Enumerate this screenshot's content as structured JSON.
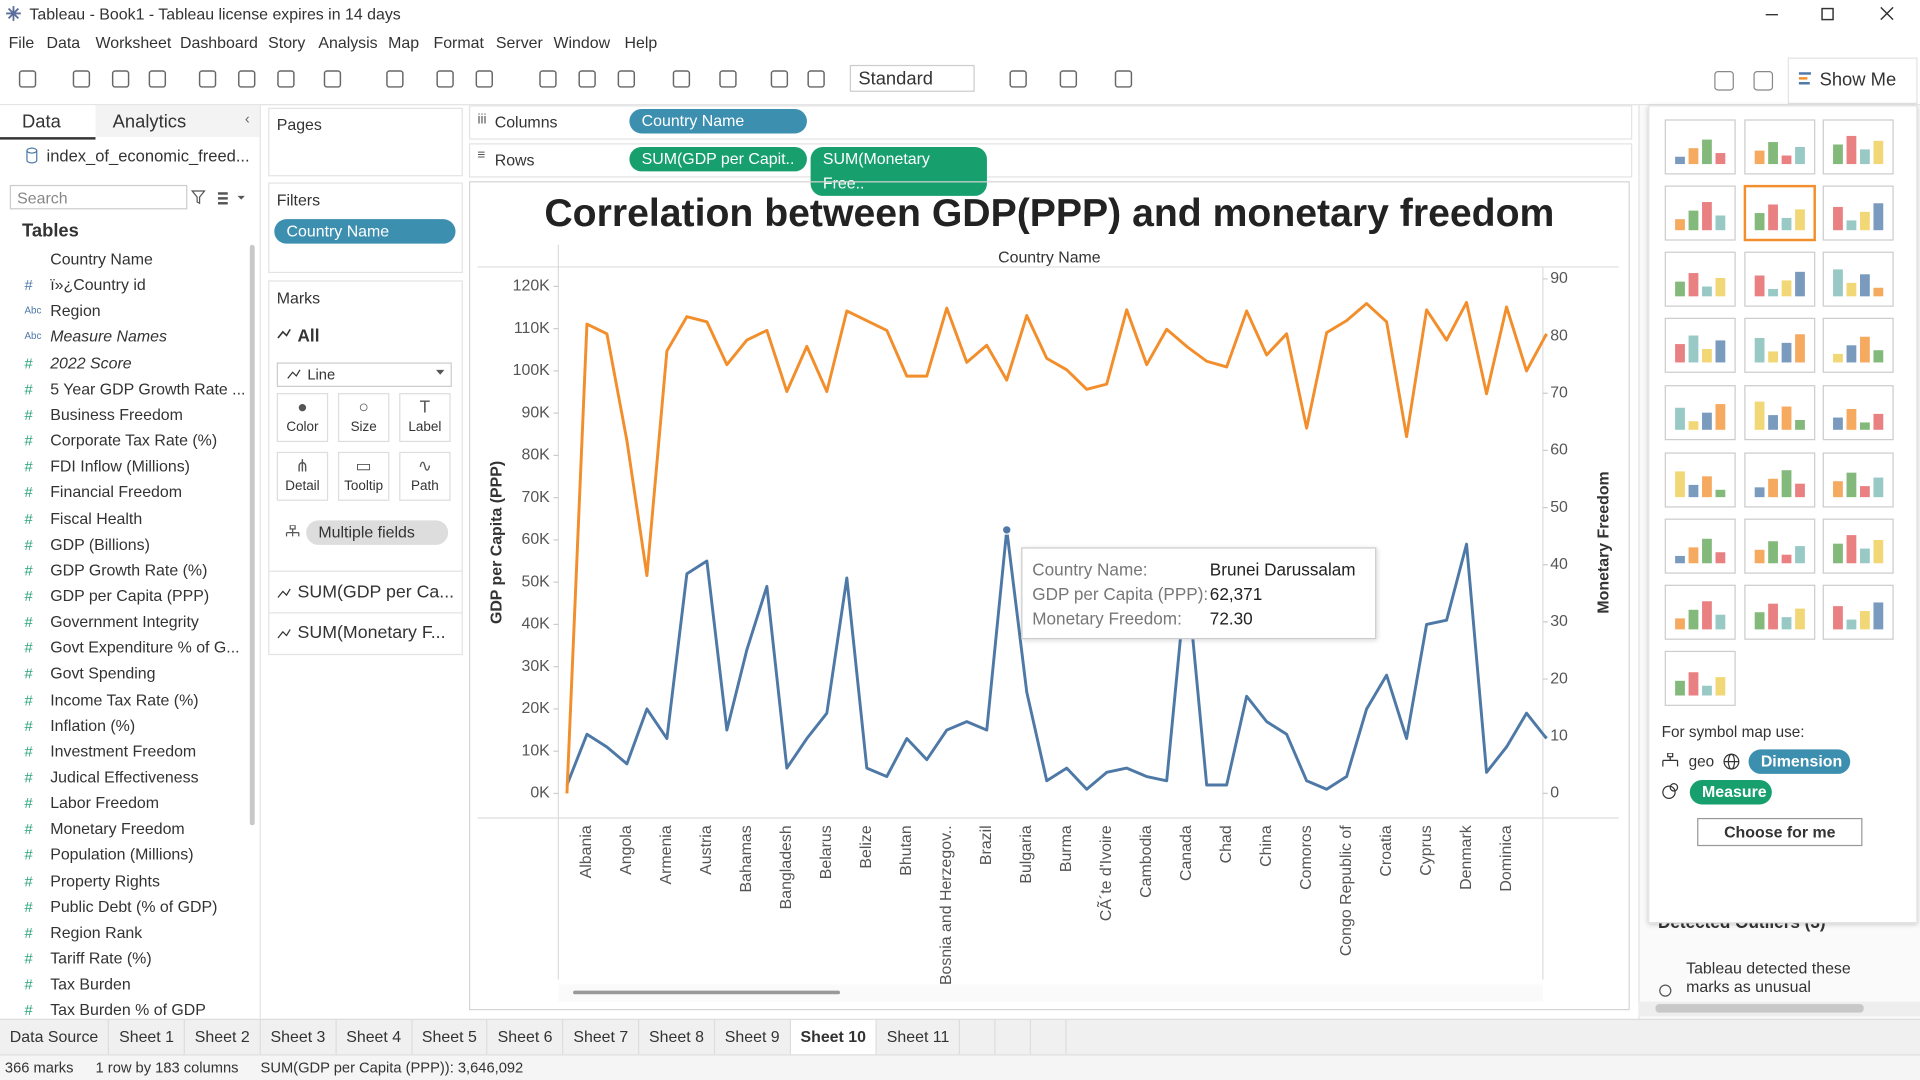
{
  "window": {
    "title": "Tableau - Book1 - Tableau license expires in 14 days"
  },
  "menu": [
    "File",
    "Data",
    "Worksheet",
    "Dashboard",
    "Story",
    "Analysis",
    "Map",
    "Format",
    "Server",
    "Window",
    "Help"
  ],
  "toolbar": {
    "view_size": "Standard",
    "show_me": "Show Me"
  },
  "data_pane": {
    "tabs": [
      "Data",
      "Analytics"
    ],
    "source": "index_of_economic_freed...",
    "search_placeholder": "Search",
    "tables_heading": "Tables",
    "fields": [
      {
        "kind": "geo",
        "name": "Country Name"
      },
      {
        "kind": "dimension",
        "icon": "#",
        "name": "ï»¿Country id"
      },
      {
        "kind": "dimension",
        "icon": "Abc",
        "name": "Region"
      },
      {
        "kind": "dimension",
        "icon": "Abc",
        "name": "Measure Names",
        "italic": true
      },
      {
        "kind": "measure",
        "icon": "#",
        "name": "2022 Score",
        "italic": true
      },
      {
        "kind": "measure",
        "icon": "#",
        "name": "5 Year GDP Growth Rate ..."
      },
      {
        "kind": "measure",
        "icon": "#",
        "name": "Business Freedom"
      },
      {
        "kind": "measure",
        "icon": "#",
        "name": "Corporate Tax Rate (%)"
      },
      {
        "kind": "measure",
        "icon": "#",
        "name": "FDI Inflow (Millions)"
      },
      {
        "kind": "measure",
        "icon": "#",
        "name": "Financial Freedom"
      },
      {
        "kind": "measure",
        "icon": "#",
        "name": "Fiscal Health"
      },
      {
        "kind": "measure",
        "icon": "#",
        "name": "GDP (Billions)"
      },
      {
        "kind": "measure",
        "icon": "#",
        "name": "GDP Growth Rate (%)"
      },
      {
        "kind": "measure",
        "icon": "#",
        "name": "GDP per Capita (PPP)"
      },
      {
        "kind": "measure",
        "icon": "#",
        "name": "Government Integrity"
      },
      {
        "kind": "measure",
        "icon": "#",
        "name": "Govt Expenditure % of G..."
      },
      {
        "kind": "measure",
        "icon": "#",
        "name": "Govt Spending"
      },
      {
        "kind": "measure",
        "icon": "#",
        "name": "Income Tax Rate (%)"
      },
      {
        "kind": "measure",
        "icon": "#",
        "name": "Inflation (%)"
      },
      {
        "kind": "measure",
        "icon": "#",
        "name": "Investment Freedom"
      },
      {
        "kind": "measure",
        "icon": "#",
        "name": "Judical Effectiveness"
      },
      {
        "kind": "measure",
        "icon": "#",
        "name": "Labor Freedom"
      },
      {
        "kind": "measure",
        "icon": "#",
        "name": "Monetary Freedom"
      },
      {
        "kind": "measure",
        "icon": "#",
        "name": "Population (Millions)"
      },
      {
        "kind": "measure",
        "icon": "#",
        "name": "Property Rights"
      },
      {
        "kind": "measure",
        "icon": "#",
        "name": "Public Debt (% of GDP)"
      },
      {
        "kind": "measure",
        "icon": "#",
        "name": "Region Rank"
      },
      {
        "kind": "measure",
        "icon": "#",
        "name": "Tariff Rate (%)"
      },
      {
        "kind": "measure",
        "icon": "#",
        "name": "Tax Burden"
      },
      {
        "kind": "measure",
        "icon": "#",
        "name": "Tax Burden % of GDP"
      }
    ]
  },
  "cards": {
    "pages": "Pages",
    "filters": "Filters",
    "filter_pills": [
      "Country Name"
    ],
    "marks": "Marks",
    "marks_all": "All",
    "mark_type": "Line",
    "mark_buttons": [
      "Color",
      "Size",
      "Label",
      "Detail",
      "Tooltip",
      "Path"
    ],
    "detail_pill": "Multiple fields",
    "measures": [
      "SUM(GDP per Ca...",
      "SUM(Monetary F..."
    ]
  },
  "shelves": {
    "columns_label": "Columns",
    "columns": [
      "Country Name"
    ],
    "rows_label": "Rows",
    "rows": [
      "SUM(GDP per Capit..",
      "SUM(Monetary Free.."
    ]
  },
  "chart_data": {
    "type": "line",
    "title": "Correlation between GDP(PPP) and monetary freedom",
    "x_label": "Country Name",
    "y_label": "GDP per Capita (PPP)",
    "y2_label": "Monetary Freedom",
    "categories": [
      null,
      "Albania",
      null,
      "Angola",
      null,
      "Armenia",
      null,
      "Austria",
      null,
      "Bahamas",
      null,
      "Bangladesh",
      null,
      "Belarus",
      null,
      "Belize",
      null,
      "Bhutan",
      null,
      "Bosnia and Herzegov..",
      null,
      "Brazil",
      null,
      "Bulgaria",
      null,
      "Burma",
      null,
      "CÃ´te d'Ivoire",
      null,
      "Cambodia",
      null,
      "Canada",
      null,
      "Chad",
      null,
      "China",
      null,
      "Comoros",
      null,
      "Congo Republic of",
      null,
      "Croatia",
      null,
      "Cyprus",
      null,
      "Denmark",
      null,
      "Dominica",
      null,
      null
    ],
    "series": [
      {
        "color": "#4e79a7",
        "values": [
          2000,
          14000,
          11000,
          7000,
          20000,
          13000,
          52000,
          55000,
          15000,
          34000,
          49000,
          6000,
          13000,
          19000,
          51000,
          6000,
          4000,
          13000,
          8000,
          15000,
          17000,
          15000,
          62371,
          24000,
          3000,
          6000,
          1000,
          5000,
          6000,
          4000,
          3000,
          52000,
          2000,
          2000,
          23000,
          17000,
          14000,
          3000,
          1000,
          4000,
          20000,
          28000,
          13000,
          40000,
          41000,
          59000,
          5000,
          11000,
          19000,
          13000
        ]
      },
      {
        "color": "#f28e2b",
        "axis": "y2",
        "values": [
          0,
          82.1,
          80.4,
          61.7,
          38.1,
          77.4,
          83.4,
          82.5,
          75,
          79.3,
          81,
          70.3,
          78.2,
          70.3,
          84.4,
          82.7,
          81,
          73,
          73,
          84.9,
          75.4,
          78.4,
          72.3,
          83.6,
          76.1,
          74.1,
          70.7,
          71.6,
          84.6,
          75,
          81.2,
          78.2,
          75.6,
          74.6,
          84.4,
          76.7,
          80.4,
          63.9,
          80.6,
          82.7,
          85.7,
          82.5,
          62.4,
          84.6,
          79.3,
          85.9,
          69.9,
          85.1,
          73.9,
          80.4
        ]
      }
    ],
    "ylim": [
      -5800,
      124600
    ],
    "yticks": [
      {
        "value": 0,
        "label": "0K"
      },
      {
        "value": 10000,
        "label": "10K"
      },
      {
        "value": 20000,
        "label": "20K"
      },
      {
        "value": 30000,
        "label": "30K"
      },
      {
        "value": 40000,
        "label": "40K"
      },
      {
        "value": 50000,
        "label": "50K"
      },
      {
        "value": 60000,
        "label": "60K"
      },
      {
        "value": 70000,
        "label": "70K"
      },
      {
        "value": 80000,
        "label": "80K"
      },
      {
        "value": 90000,
        "label": "90K"
      },
      {
        "value": 100000,
        "label": "100K"
      },
      {
        "value": 110000,
        "label": "110K"
      },
      {
        "value": 120000,
        "label": "120K"
      }
    ],
    "y2lim": [
      -4.3,
      92.1
    ],
    "y2ticks": [
      0,
      10,
      20,
      30,
      40,
      50,
      60,
      70,
      80,
      90
    ],
    "grid": false
  },
  "tooltip": {
    "rows": [
      [
        "Country Name:",
        "Brunei Darussalam"
      ],
      [
        "GDP per Capita (PPP):",
        "62,371"
      ],
      [
        "Monetary Freedom:",
        "72.30"
      ]
    ]
  },
  "show_me": {
    "symbol_map_hint": "For symbol map use:",
    "geo": "geo",
    "dimension": "Dimension",
    "measure": "Measure",
    "choose": "Choose for me",
    "outliers_heading": "Detected Outliers (3)",
    "outliers_text": "Tableau detected these marks as unusual"
  },
  "sheet_tabs": [
    "Data Source",
    "Sheet 1",
    "Sheet 2",
    "Sheet 3",
    "Sheet 4",
    "Sheet 5",
    "Sheet 6",
    "Sheet 7",
    "Sheet 8",
    "Sheet 9",
    "Sheet 10",
    "Sheet 11"
  ],
  "active_tab": 10,
  "status": [
    "366 marks",
    "1 row by 183 columns",
    "SUM(GDP per Capita (PPP)): 3,646,092"
  ]
}
